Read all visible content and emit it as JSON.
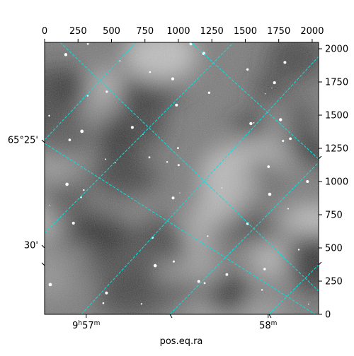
{
  "chart_data": {
    "type": "heatmap",
    "title": "",
    "xlabel": "pos.eq.ra",
    "ylabel": "",
    "xlim": [
      0,
      2048
    ],
    "ylim": [
      0,
      2048
    ],
    "pixel_x_ticks": [
      0,
      250,
      500,
      750,
      1000,
      1250,
      1500,
      1750,
      2000
    ],
    "pixel_y_ticks": [
      0,
      250,
      500,
      750,
      1000,
      1250,
      1500,
      1750,
      2000
    ],
    "ra_ticks": [
      {
        "value": 20,
        "label_main": "9",
        "label_sup1": "h",
        "label_mid": "57",
        "label_sup2": "m"
      },
      {
        "value": 1380,
        "label_main": "58",
        "label_sup1": "m"
      }
    ],
    "dec_ticks": [
      {
        "value": 1300,
        "label": "65°25'"
      },
      {
        "value": 520,
        "label": "30'"
      }
    ],
    "grid": true,
    "grid_color": "#00e5e5",
    "colormap": "gray",
    "background_color": "#7a7a7a"
  }
}
